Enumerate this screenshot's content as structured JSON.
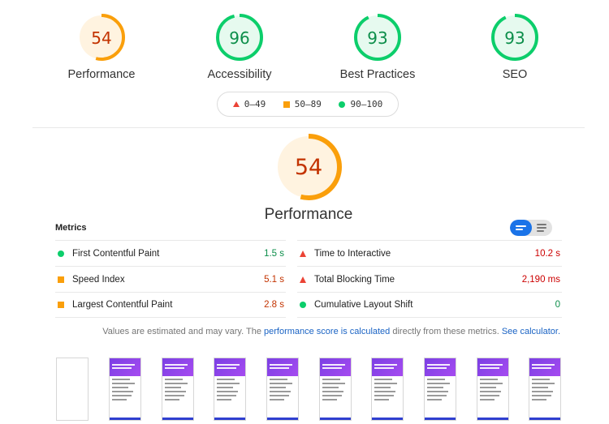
{
  "categories": [
    {
      "name": "Performance",
      "score": 54,
      "color": "#fa9f0b",
      "fill": "#fff3e0",
      "text_color": "#c33300"
    },
    {
      "name": "Accessibility",
      "score": 96,
      "color": "#0cce6b",
      "fill": "#e6faef",
      "text_color": "#0c8e4a"
    },
    {
      "name": "Best Practices",
      "score": 93,
      "color": "#0cce6b",
      "fill": "#e6faef",
      "text_color": "#0c8e4a"
    },
    {
      "name": "SEO",
      "score": 93,
      "color": "#0cce6b",
      "fill": "#e6faef",
      "text_color": "#0c8e4a"
    }
  ],
  "legend": {
    "fail": "0–49",
    "average": "50–89",
    "pass": "90–100"
  },
  "main_score": {
    "value": 54,
    "label": "Performance",
    "color": "#fa9f0b",
    "fill": "#fff3e0",
    "text_color": "#c33300"
  },
  "metrics": {
    "title": "Metrics",
    "left": [
      {
        "name": "First Contentful Paint",
        "value": "1.5 s",
        "status": "pass"
      },
      {
        "name": "Speed Index",
        "value": "5.1 s",
        "status": "average"
      },
      {
        "name": "Largest Contentful Paint",
        "value": "2.8 s",
        "status": "average"
      }
    ],
    "right": [
      {
        "name": "Time to Interactive",
        "value": "10.2 s",
        "status": "fail"
      },
      {
        "name": "Total Blocking Time",
        "value": "2,190 ms",
        "status": "fail"
      },
      {
        "name": "Cumulative Layout Shift",
        "value": "0",
        "status": "pass"
      }
    ]
  },
  "note": {
    "prefix": "Values are estimated and may vary. The ",
    "link1": "performance score is calculated",
    "middle": " directly from these metrics. ",
    "link2": "See calculator."
  }
}
